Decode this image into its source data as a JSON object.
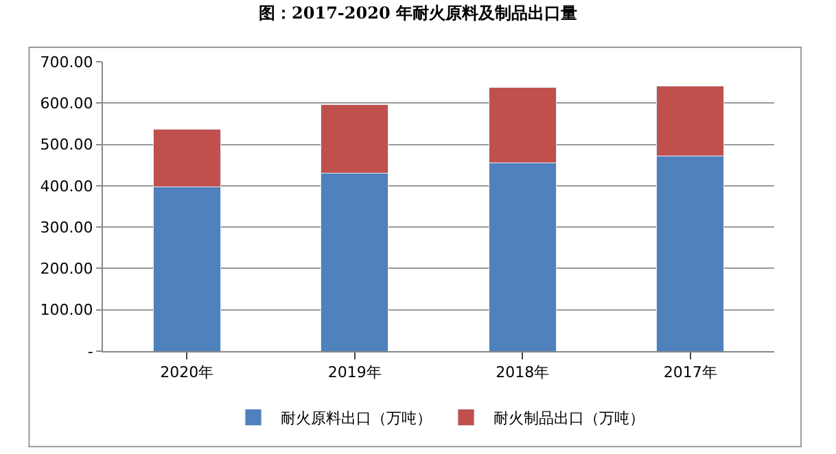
{
  "chart_data": {
    "type": "bar",
    "title": "图：2017-2020 年耐火原料及制品出口量",
    "categories": [
      "2020年",
      "2019年",
      "2018年",
      "2017年"
    ],
    "stacked": true,
    "series": [
      {
        "name": "耐火原料出口（万吨）",
        "color": "#4f81bd",
        "values": [
          398,
          430,
          456,
          472
        ]
      },
      {
        "name": "耐火制品出口（万吨）",
        "color": "#c0504d",
        "values": [
          139,
          166,
          181,
          169
        ]
      }
    ],
    "ylim": [
      0,
      700
    ],
    "yticks": [
      {
        "value": 0,
        "label": "-"
      },
      {
        "value": 100,
        "label": "100.00"
      },
      {
        "value": 200,
        "label": "200.00"
      },
      {
        "value": 300,
        "label": "300.00"
      },
      {
        "value": 400,
        "label": "400.00"
      },
      {
        "value": 500,
        "label": "500.00"
      },
      {
        "value": 600,
        "label": "600.00"
      },
      {
        "value": 700,
        "label": "700.00"
      }
    ],
    "grid": "y",
    "legend": "bottom"
  }
}
